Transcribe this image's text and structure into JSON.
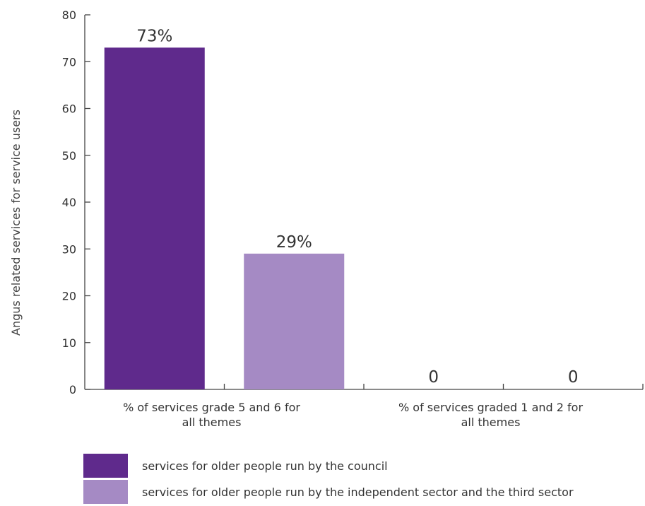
{
  "chart_data": {
    "type": "bar",
    "categories": [
      "% of services grade 5 and 6 for all themes",
      "% of services graded 1 and 2 for all themes"
    ],
    "category_label_lines": [
      [
        "% of services grade 5 and 6 for",
        "all themes"
      ],
      [
        "% of services graded 1 and 2 for",
        "all themes"
      ]
    ],
    "series": [
      {
        "name": "services for older people run by the council",
        "values": [
          73,
          0
        ],
        "color": "#5f2a8c"
      },
      {
        "name": "services for older people run by the independent sector and the third sector",
        "values": [
          29,
          0
        ],
        "color": "#a58ac4"
      }
    ],
    "data_labels": [
      [
        "73%",
        "0"
      ],
      [
        "29%",
        "0"
      ]
    ],
    "ylabel": "Angus related services for service users",
    "xlabel": "",
    "ylim": [
      0,
      80
    ],
    "yticks": [
      0,
      10,
      20,
      30,
      40,
      50,
      60,
      70,
      80
    ],
    "grid": false,
    "legend_position": "bottom-left"
  }
}
